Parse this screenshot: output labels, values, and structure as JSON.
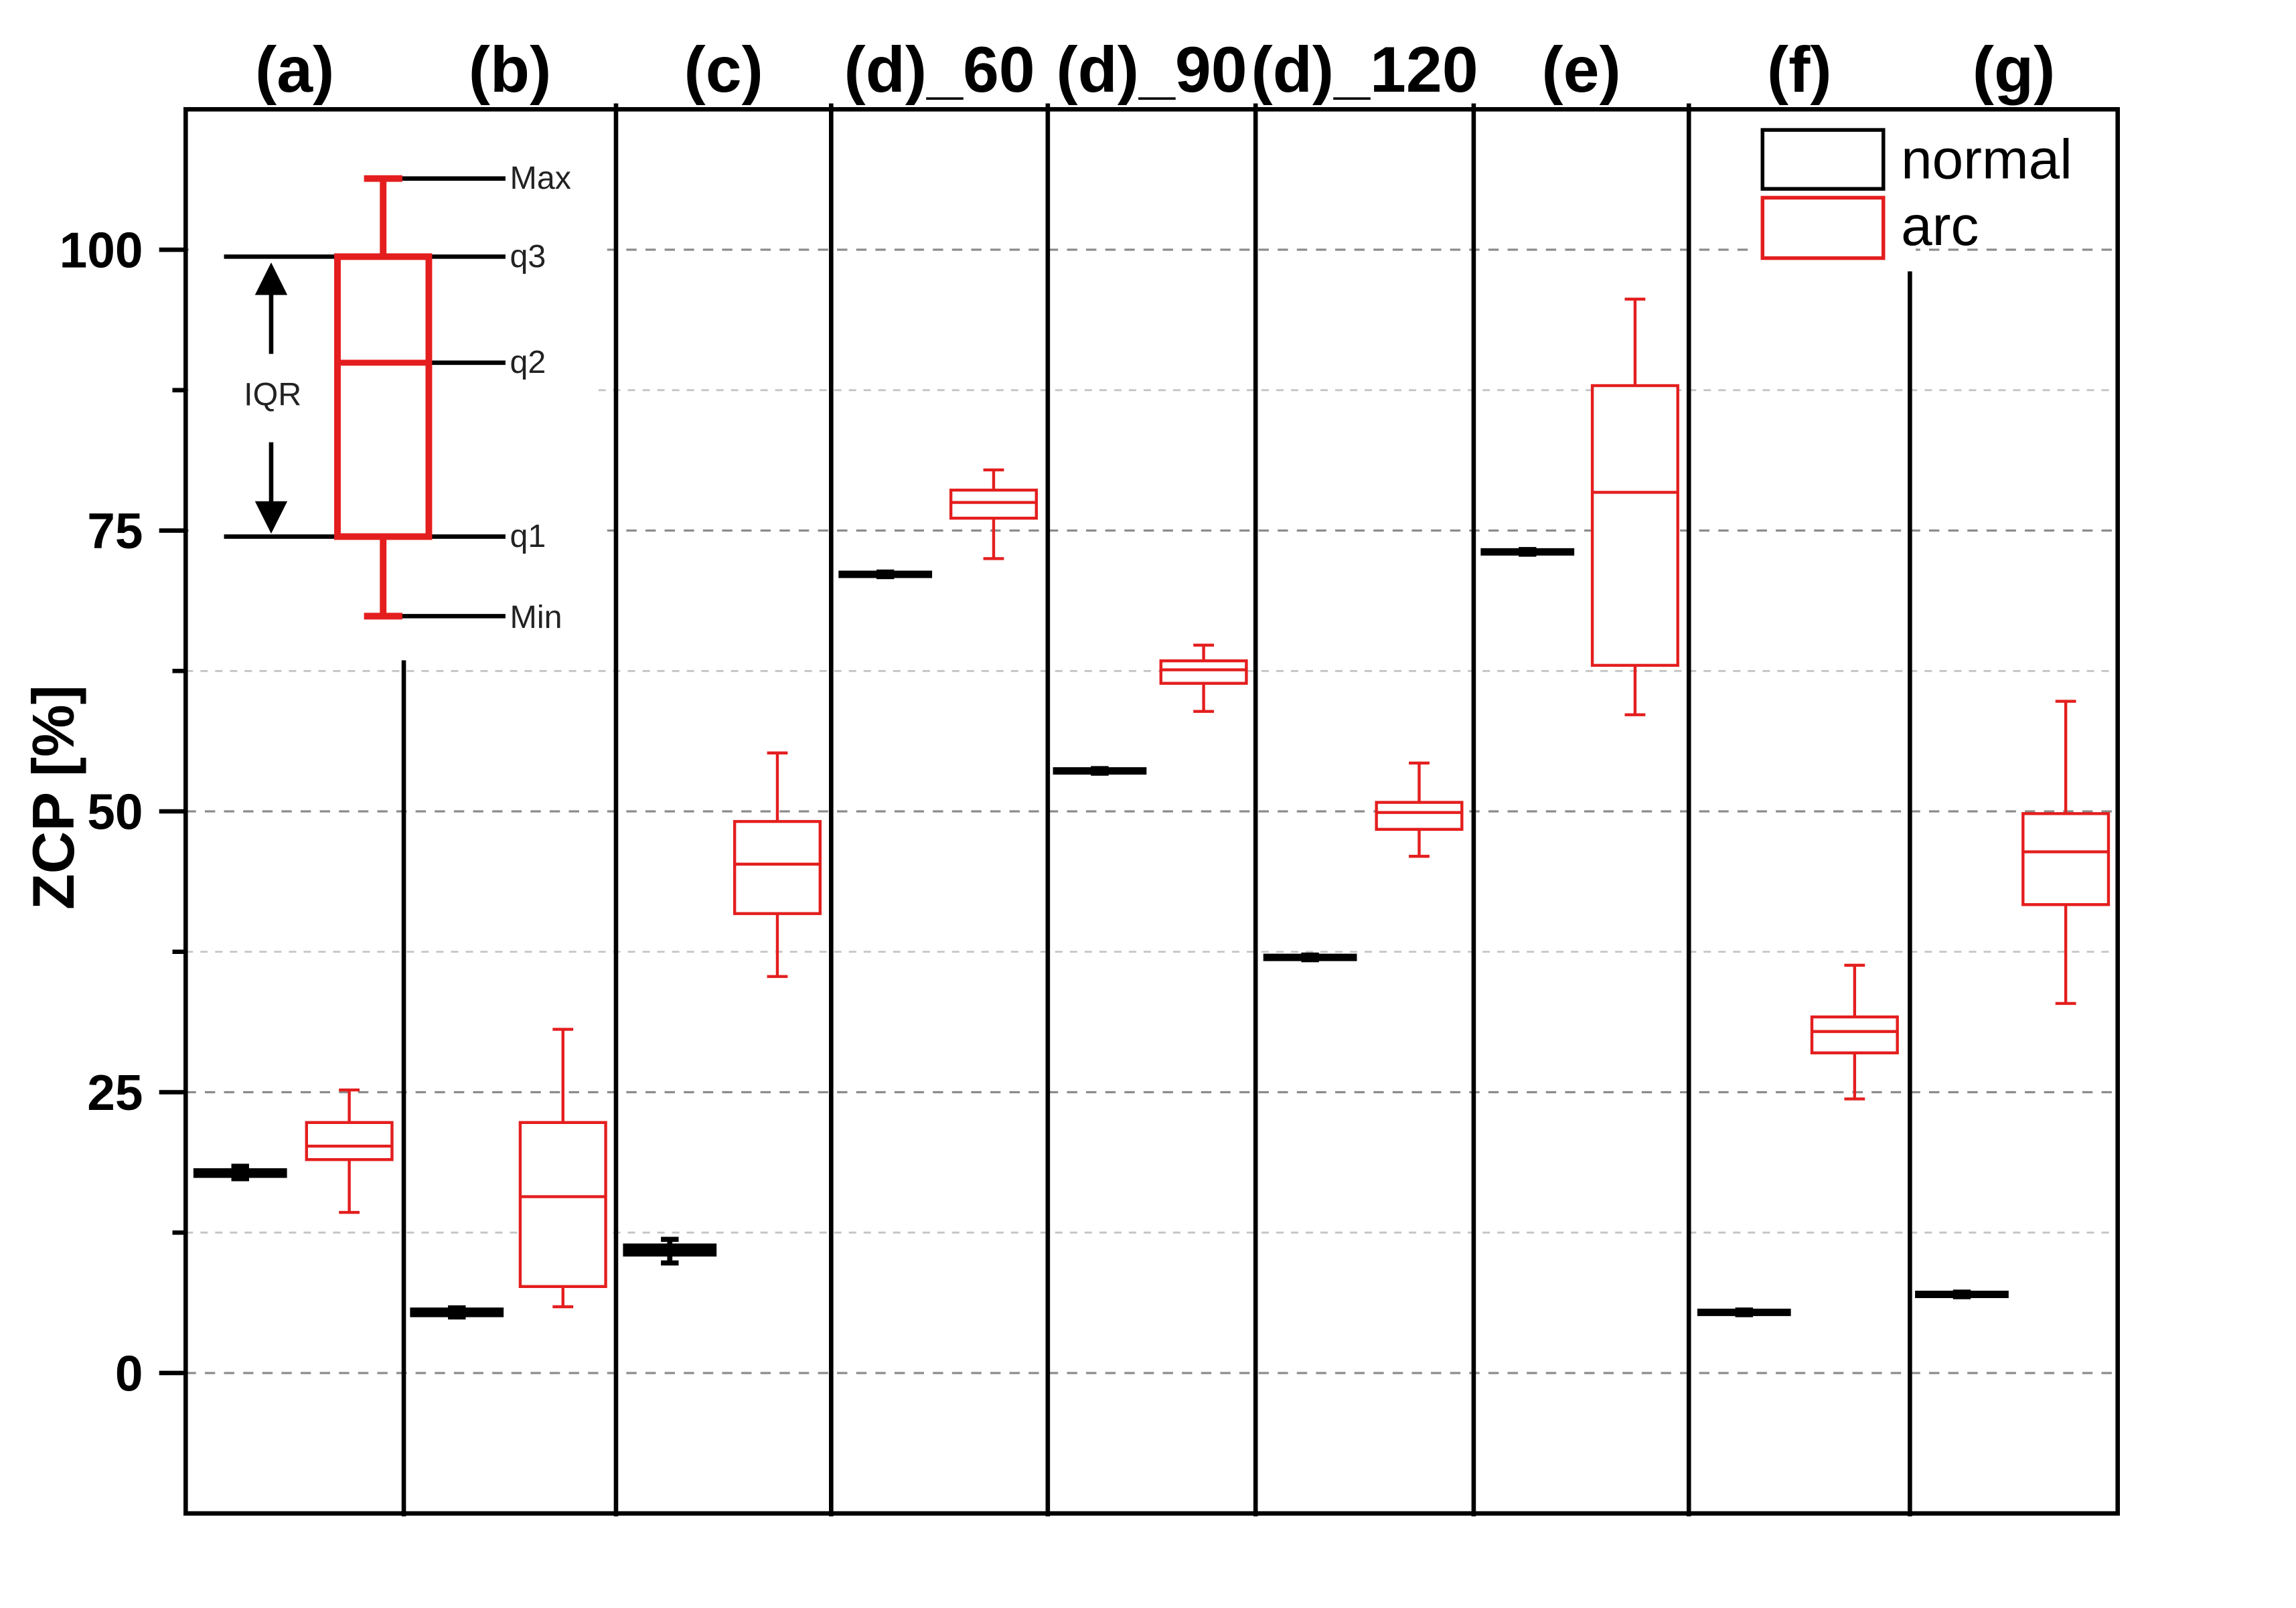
{
  "chart_data": {
    "type": "box",
    "categories": [
      "(a)",
      "(b)",
      "(c)",
      "(d)_60",
      "(d)_90",
      "(d)_120",
      "(e)",
      "(f)",
      "(g)"
    ],
    "ylabel": "ZCP [%]",
    "ylim": [
      -12.5,
      112.5
    ],
    "yticks": [
      0,
      25,
      50,
      75,
      100
    ],
    "grid": true,
    "legend_position": "top-right",
    "series": [
      {
        "name": "normal",
        "color": "#000000",
        "boxes": [
          {
            "min": 17.3,
            "q1": 17.6,
            "median": 17.8,
            "q3": 18.0,
            "max": 18.4
          },
          {
            "min": 5.0,
            "q1": 5.2,
            "median": 5.4,
            "q3": 5.6,
            "max": 5.8
          },
          {
            "min": 9.8,
            "q1": 10.6,
            "median": 10.9,
            "q3": 11.3,
            "max": 11.9
          },
          {
            "min": 70.9,
            "q1": 71.0,
            "median": 71.1,
            "q3": 71.2,
            "max": 71.3
          },
          {
            "min": 53.4,
            "q1": 53.5,
            "median": 53.6,
            "q3": 53.7,
            "max": 53.8
          },
          {
            "min": 36.8,
            "q1": 36.9,
            "median": 37.0,
            "q3": 37.1,
            "max": 37.2
          },
          {
            "min": 72.9,
            "q1": 73.0,
            "median": 73.1,
            "q3": 73.2,
            "max": 73.3
          },
          {
            "min": 5.2,
            "q1": 5.3,
            "median": 5.4,
            "q3": 5.5,
            "max": 5.6
          },
          {
            "min": 6.8,
            "q1": 6.9,
            "median": 7.0,
            "q3": 7.1,
            "max": 7.2
          }
        ]
      },
      {
        "name": "arc",
        "color": "#e41e1e",
        "boxes": [
          {
            "min": 14.3,
            "q1": 19.0,
            "median": 20.2,
            "q3": 22.3,
            "max": 25.2
          },
          {
            "min": 5.9,
            "q1": 7.7,
            "median": 15.7,
            "q3": 22.3,
            "max": 30.6
          },
          {
            "min": 35.3,
            "q1": 40.9,
            "median": 45.3,
            "q3": 49.1,
            "max": 55.2
          },
          {
            "min": 72.5,
            "q1": 76.1,
            "median": 77.5,
            "q3": 78.6,
            "max": 80.4
          },
          {
            "min": 58.9,
            "q1": 61.4,
            "median": 62.6,
            "q3": 63.4,
            "max": 64.8
          },
          {
            "min": 46.0,
            "q1": 48.4,
            "median": 49.9,
            "q3": 50.8,
            "max": 54.3
          },
          {
            "min": 58.6,
            "q1": 63.0,
            "median": 78.4,
            "q3": 87.9,
            "max": 95.6
          },
          {
            "min": 24.4,
            "q1": 28.5,
            "median": 30.4,
            "q3": 31.7,
            "max": 36.3
          },
          {
            "min": 32.9,
            "q1": 41.7,
            "median": 46.4,
            "q3": 49.8,
            "max": 59.8
          }
        ]
      }
    ]
  },
  "box_key": {
    "max": "Max",
    "q3": "q3",
    "q2": "q2",
    "q1": "q1",
    "min": "Min",
    "iqr": "IQR"
  }
}
